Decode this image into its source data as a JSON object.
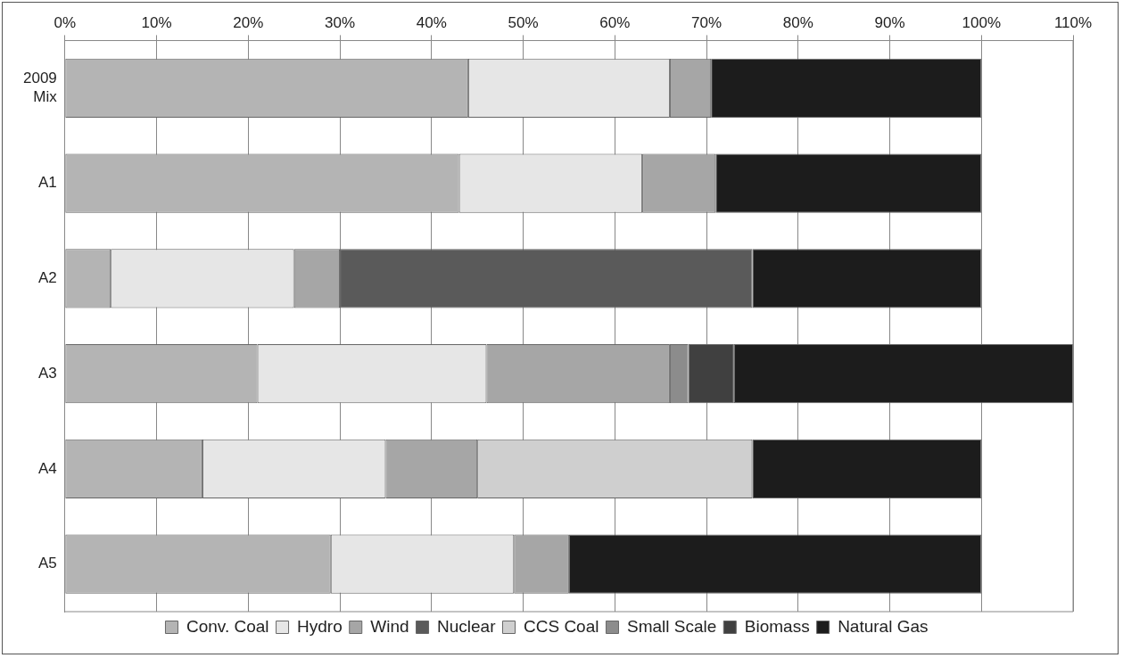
{
  "chart_data": {
    "type": "bar",
    "orientation": "horizontal",
    "stacked": true,
    "categories": [
      "2009 Mix",
      "A1",
      "A2",
      "A3",
      "A4",
      "A5"
    ],
    "series": [
      {
        "name": "Conv. Coal",
        "color": "#b4b4b4",
        "values": [
          44,
          43,
          5,
          21,
          15,
          29
        ]
      },
      {
        "name": "Hydro",
        "color": "#e6e6e6",
        "values": [
          22,
          20,
          20,
          25,
          20,
          20
        ]
      },
      {
        "name": "Wind",
        "color": "#a6a6a6",
        "values": [
          4.5,
          8,
          5,
          20,
          10,
          6
        ]
      },
      {
        "name": "Nuclear",
        "color": "#5a5a5a",
        "values": [
          0,
          0,
          45,
          0,
          0,
          0
        ]
      },
      {
        "name": "CCS Coal",
        "color": "#cfcfcf",
        "values": [
          0,
          0,
          0,
          0,
          30,
          0
        ]
      },
      {
        "name": "Small Scale",
        "color": "#8c8c8c",
        "values": [
          0,
          0,
          0,
          2,
          0,
          0
        ]
      },
      {
        "name": "Biomass",
        "color": "#404040",
        "values": [
          0,
          0,
          0,
          5,
          0,
          0
        ]
      },
      {
        "name": "Natural Gas",
        "color": "#1c1c1c",
        "values": [
          29.5,
          29,
          25,
          37,
          25,
          45
        ]
      }
    ],
    "xlim": [
      0,
      110
    ],
    "xticks": [
      {
        "value": 0,
        "label": "0%"
      },
      {
        "value": 10,
        "label": "10%"
      },
      {
        "value": 20,
        "label": "20%"
      },
      {
        "value": 30,
        "label": "30%"
      },
      {
        "value": 40,
        "label": "40%"
      },
      {
        "value": 50,
        "label": "50%"
      },
      {
        "value": 60,
        "label": "60%"
      },
      {
        "value": 70,
        "label": "70%"
      },
      {
        "value": 80,
        "label": "80%"
      },
      {
        "value": 90,
        "label": "90%"
      },
      {
        "value": 100,
        "label": "100%"
      },
      {
        "value": 110,
        "label": "110%"
      }
    ],
    "grid": "x",
    "legend": "bottom"
  }
}
